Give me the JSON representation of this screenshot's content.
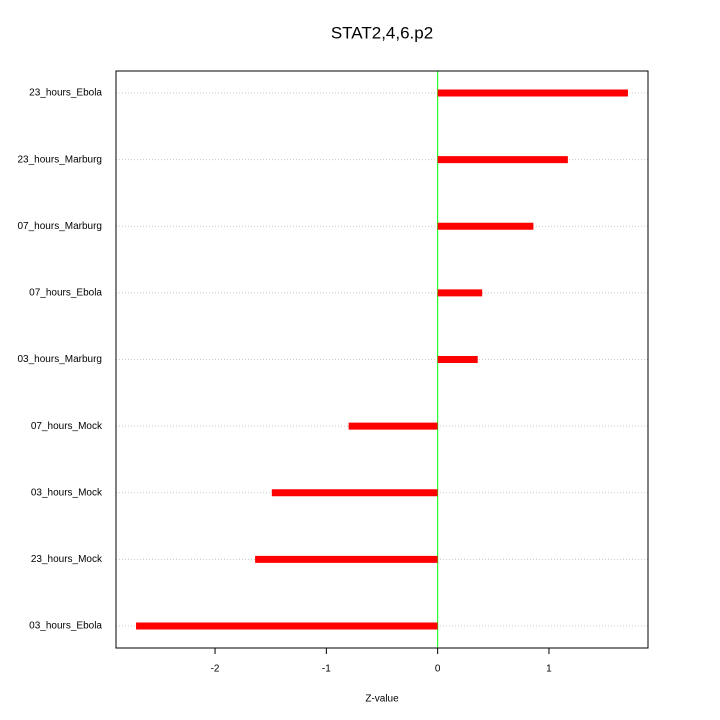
{
  "chart_data": {
    "type": "bar",
    "orientation": "horizontal",
    "title": "STAT2,4,6.p2",
    "x_label": "Z-value",
    "categories": [
      "23_hours_Ebola",
      "23_hours_Marburg",
      "07_hours_Marburg",
      "07_hours_Ebola",
      "03_hours_Marburg",
      "07_hours_Mock",
      "03_hours_Mock",
      "23_hours_Mock",
      "03_hours_Ebola"
    ],
    "values": [
      1.71,
      1.17,
      0.86,
      0.4,
      0.36,
      -0.8,
      -1.49,
      -1.64,
      -2.71
    ],
    "color": "#ff0000",
    "zero_line_color": "#00ff00",
    "xlim": [
      -2.89,
      1.89
    ],
    "xticks": [
      -2,
      -1,
      0,
      1
    ],
    "grid": true
  }
}
